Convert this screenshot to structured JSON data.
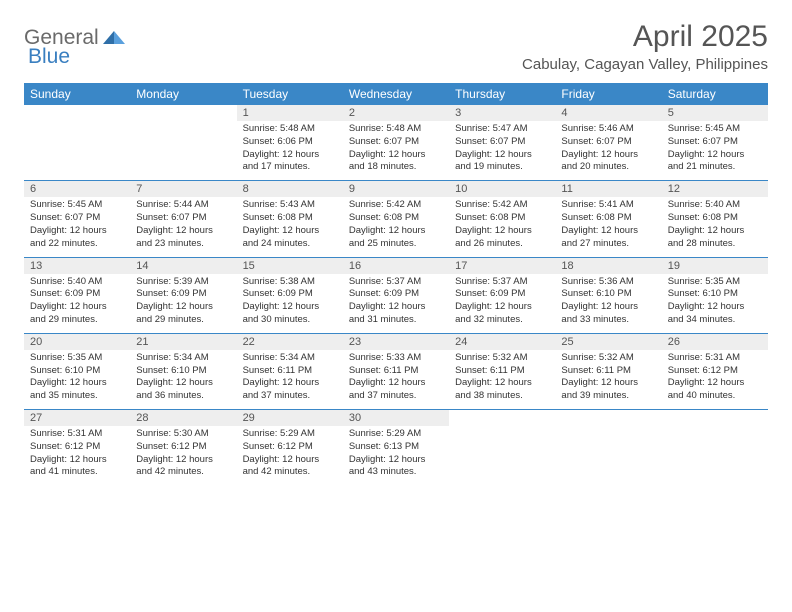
{
  "logo": {
    "part1": "General",
    "part2": "Blue"
  },
  "title": "April 2025",
  "location": "Cabulay, Cagayan Valley, Philippines",
  "colors": {
    "header_bg": "#3a87c7",
    "header_text": "#ffffff",
    "daybar_bg": "#eeeeee",
    "row_border": "#3a87c7",
    "text": "#333333",
    "title_text": "#555555",
    "logo_gray": "#6a6a6a",
    "logo_blue": "#3a7fc0"
  },
  "weekdays": [
    "Sunday",
    "Monday",
    "Tuesday",
    "Wednesday",
    "Thursday",
    "Friday",
    "Saturday"
  ],
  "weeks": [
    [
      null,
      null,
      {
        "d": "1",
        "sr": "Sunrise: 5:48 AM",
        "ss": "Sunset: 6:06 PM",
        "dl1": "Daylight: 12 hours",
        "dl2": "and 17 minutes."
      },
      {
        "d": "2",
        "sr": "Sunrise: 5:48 AM",
        "ss": "Sunset: 6:07 PM",
        "dl1": "Daylight: 12 hours",
        "dl2": "and 18 minutes."
      },
      {
        "d": "3",
        "sr": "Sunrise: 5:47 AM",
        "ss": "Sunset: 6:07 PM",
        "dl1": "Daylight: 12 hours",
        "dl2": "and 19 minutes."
      },
      {
        "d": "4",
        "sr": "Sunrise: 5:46 AM",
        "ss": "Sunset: 6:07 PM",
        "dl1": "Daylight: 12 hours",
        "dl2": "and 20 minutes."
      },
      {
        "d": "5",
        "sr": "Sunrise: 5:45 AM",
        "ss": "Sunset: 6:07 PM",
        "dl1": "Daylight: 12 hours",
        "dl2": "and 21 minutes."
      }
    ],
    [
      {
        "d": "6",
        "sr": "Sunrise: 5:45 AM",
        "ss": "Sunset: 6:07 PM",
        "dl1": "Daylight: 12 hours",
        "dl2": "and 22 minutes."
      },
      {
        "d": "7",
        "sr": "Sunrise: 5:44 AM",
        "ss": "Sunset: 6:07 PM",
        "dl1": "Daylight: 12 hours",
        "dl2": "and 23 minutes."
      },
      {
        "d": "8",
        "sr": "Sunrise: 5:43 AM",
        "ss": "Sunset: 6:08 PM",
        "dl1": "Daylight: 12 hours",
        "dl2": "and 24 minutes."
      },
      {
        "d": "9",
        "sr": "Sunrise: 5:42 AM",
        "ss": "Sunset: 6:08 PM",
        "dl1": "Daylight: 12 hours",
        "dl2": "and 25 minutes."
      },
      {
        "d": "10",
        "sr": "Sunrise: 5:42 AM",
        "ss": "Sunset: 6:08 PM",
        "dl1": "Daylight: 12 hours",
        "dl2": "and 26 minutes."
      },
      {
        "d": "11",
        "sr": "Sunrise: 5:41 AM",
        "ss": "Sunset: 6:08 PM",
        "dl1": "Daylight: 12 hours",
        "dl2": "and 27 minutes."
      },
      {
        "d": "12",
        "sr": "Sunrise: 5:40 AM",
        "ss": "Sunset: 6:08 PM",
        "dl1": "Daylight: 12 hours",
        "dl2": "and 28 minutes."
      }
    ],
    [
      {
        "d": "13",
        "sr": "Sunrise: 5:40 AM",
        "ss": "Sunset: 6:09 PM",
        "dl1": "Daylight: 12 hours",
        "dl2": "and 29 minutes."
      },
      {
        "d": "14",
        "sr": "Sunrise: 5:39 AM",
        "ss": "Sunset: 6:09 PM",
        "dl1": "Daylight: 12 hours",
        "dl2": "and 29 minutes."
      },
      {
        "d": "15",
        "sr": "Sunrise: 5:38 AM",
        "ss": "Sunset: 6:09 PM",
        "dl1": "Daylight: 12 hours",
        "dl2": "and 30 minutes."
      },
      {
        "d": "16",
        "sr": "Sunrise: 5:37 AM",
        "ss": "Sunset: 6:09 PM",
        "dl1": "Daylight: 12 hours",
        "dl2": "and 31 minutes."
      },
      {
        "d": "17",
        "sr": "Sunrise: 5:37 AM",
        "ss": "Sunset: 6:09 PM",
        "dl1": "Daylight: 12 hours",
        "dl2": "and 32 minutes."
      },
      {
        "d": "18",
        "sr": "Sunrise: 5:36 AM",
        "ss": "Sunset: 6:10 PM",
        "dl1": "Daylight: 12 hours",
        "dl2": "and 33 minutes."
      },
      {
        "d": "19",
        "sr": "Sunrise: 5:35 AM",
        "ss": "Sunset: 6:10 PM",
        "dl1": "Daylight: 12 hours",
        "dl2": "and 34 minutes."
      }
    ],
    [
      {
        "d": "20",
        "sr": "Sunrise: 5:35 AM",
        "ss": "Sunset: 6:10 PM",
        "dl1": "Daylight: 12 hours",
        "dl2": "and 35 minutes."
      },
      {
        "d": "21",
        "sr": "Sunrise: 5:34 AM",
        "ss": "Sunset: 6:10 PM",
        "dl1": "Daylight: 12 hours",
        "dl2": "and 36 minutes."
      },
      {
        "d": "22",
        "sr": "Sunrise: 5:34 AM",
        "ss": "Sunset: 6:11 PM",
        "dl1": "Daylight: 12 hours",
        "dl2": "and 37 minutes."
      },
      {
        "d": "23",
        "sr": "Sunrise: 5:33 AM",
        "ss": "Sunset: 6:11 PM",
        "dl1": "Daylight: 12 hours",
        "dl2": "and 37 minutes."
      },
      {
        "d": "24",
        "sr": "Sunrise: 5:32 AM",
        "ss": "Sunset: 6:11 PM",
        "dl1": "Daylight: 12 hours",
        "dl2": "and 38 minutes."
      },
      {
        "d": "25",
        "sr": "Sunrise: 5:32 AM",
        "ss": "Sunset: 6:11 PM",
        "dl1": "Daylight: 12 hours",
        "dl2": "and 39 minutes."
      },
      {
        "d": "26",
        "sr": "Sunrise: 5:31 AM",
        "ss": "Sunset: 6:12 PM",
        "dl1": "Daylight: 12 hours",
        "dl2": "and 40 minutes."
      }
    ],
    [
      {
        "d": "27",
        "sr": "Sunrise: 5:31 AM",
        "ss": "Sunset: 6:12 PM",
        "dl1": "Daylight: 12 hours",
        "dl2": "and 41 minutes."
      },
      {
        "d": "28",
        "sr": "Sunrise: 5:30 AM",
        "ss": "Sunset: 6:12 PM",
        "dl1": "Daylight: 12 hours",
        "dl2": "and 42 minutes."
      },
      {
        "d": "29",
        "sr": "Sunrise: 5:29 AM",
        "ss": "Sunset: 6:12 PM",
        "dl1": "Daylight: 12 hours",
        "dl2": "and 42 minutes."
      },
      {
        "d": "30",
        "sr": "Sunrise: 5:29 AM",
        "ss": "Sunset: 6:13 PM",
        "dl1": "Daylight: 12 hours",
        "dl2": "and 43 minutes."
      },
      null,
      null,
      null
    ]
  ]
}
